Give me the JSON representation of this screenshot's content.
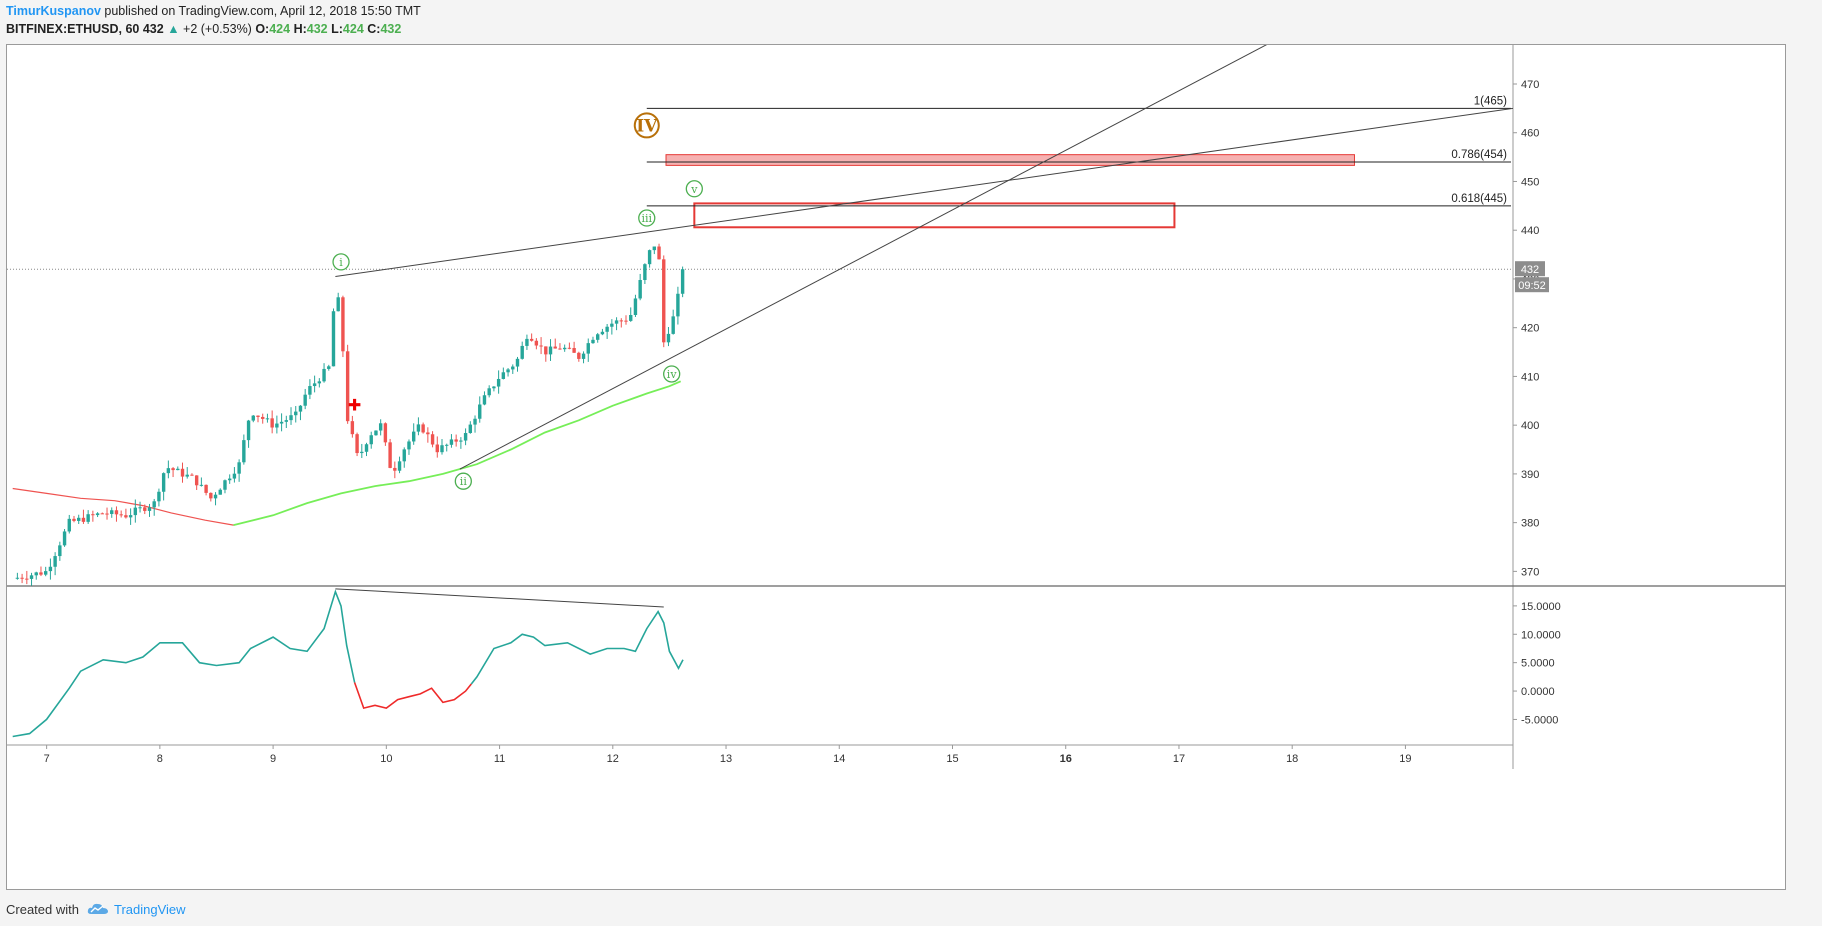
{
  "header": {
    "author": "TimurKuspanov",
    "published_text": "published on TradingView.com, April 12, 2018 15:50 TMT",
    "symbol": "BITFINEX:ETHUSD, 60",
    "last": "432",
    "change": "+2 (+0.53%)",
    "o_label": "O:",
    "o_value": "424",
    "h_label": "H:",
    "h_value": "432",
    "l_label": "L:",
    "l_value": "424",
    "c_label": "C:",
    "c_value": "432",
    "colors": {
      "author": "#2196f3",
      "up": "#26a69a",
      "ohlc": "#4caf50"
    }
  },
  "footer": {
    "created_with": "Created with",
    "brand": "TradingView",
    "logo_icon": "tradingview-cloud-icon"
  },
  "chart_data": {
    "type": "candlestick",
    "timeframe": "60",
    "x_axis": {
      "ticks": [
        {
          "label": "7",
          "day": 7,
          "bold": false
        },
        {
          "label": "8",
          "day": 8,
          "bold": false
        },
        {
          "label": "9",
          "day": 9,
          "bold": false
        },
        {
          "label": "10",
          "day": 10,
          "bold": false
        },
        {
          "label": "11",
          "day": 11,
          "bold": false
        },
        {
          "label": "12",
          "day": 12,
          "bold": false
        },
        {
          "label": "13",
          "day": 13,
          "bold": false
        },
        {
          "label": "14",
          "day": 14,
          "bold": false
        },
        {
          "label": "15",
          "day": 15,
          "bold": false
        },
        {
          "label": "16",
          "day": 16,
          "bold": true
        },
        {
          "label": "17",
          "day": 17,
          "bold": false
        },
        {
          "label": "18",
          "day": 18,
          "bold": false
        },
        {
          "label": "19",
          "day": 19,
          "bold": false
        }
      ],
      "range": [
        6.65,
        19.95
      ]
    },
    "price_axis": {
      "range": [
        367,
        478
      ],
      "ticks": [
        "370",
        "380",
        "390",
        "400",
        "410",
        "420",
        "430",
        "440",
        "450",
        "460",
        "470"
      ],
      "last_price_label": "432",
      "countdown_label": "09:52",
      "last_price": 432
    },
    "indicator_axis": {
      "range": [
        -9.5,
        18.5
      ],
      "ticks": [
        "15.0000",
        "10.0000",
        "5.0000",
        "0.0000",
        "-5.0000"
      ],
      "tick_values": [
        15,
        10,
        5,
        0,
        -5
      ]
    },
    "candle_anchors": [
      [
        6.7,
        368.5
      ],
      [
        7.0,
        370
      ],
      [
        7.2,
        380
      ],
      [
        7.5,
        382
      ],
      [
        7.7,
        381.5
      ],
      [
        7.95,
        384
      ],
      [
        8.05,
        391.5
      ],
      [
        8.3,
        389
      ],
      [
        8.45,
        385
      ],
      [
        8.7,
        392
      ],
      [
        8.8,
        403
      ],
      [
        9.0,
        400
      ],
      [
        9.2,
        402
      ],
      [
        9.3,
        407
      ],
      [
        9.5,
        412
      ],
      [
        9.55,
        429
      ],
      [
        9.6,
        422
      ],
      [
        9.65,
        402
      ],
      [
        9.75,
        393
      ],
      [
        9.85,
        398
      ],
      [
        9.95,
        400
      ],
      [
        10.05,
        390
      ],
      [
        10.15,
        395
      ],
      [
        10.3,
        400
      ],
      [
        10.45,
        395
      ],
      [
        10.55,
        396
      ],
      [
        10.7,
        398
      ],
      [
        10.85,
        405
      ],
      [
        11.0,
        410
      ],
      [
        11.15,
        413
      ],
      [
        11.25,
        419
      ],
      [
        11.4,
        415
      ],
      [
        11.55,
        416
      ],
      [
        11.7,
        414
      ],
      [
        11.85,
        419
      ],
      [
        12.0,
        421
      ],
      [
        12.15,
        422
      ],
      [
        12.25,
        430
      ],
      [
        12.3,
        434
      ],
      [
        12.35,
        437
      ],
      [
        12.4,
        437
      ],
      [
        12.45,
        417
      ],
      [
        12.55,
        423
      ],
      [
        12.62,
        432
      ]
    ],
    "indicator_anchors": [
      [
        6.7,
        -8
      ],
      [
        6.85,
        -7.5
      ],
      [
        7.0,
        -5
      ],
      [
        7.2,
        0.5
      ],
      [
        7.3,
        3.5
      ],
      [
        7.5,
        5.5
      ],
      [
        7.7,
        5
      ],
      [
        7.85,
        6
      ],
      [
        8.0,
        8.5
      ],
      [
        8.2,
        8.5
      ],
      [
        8.35,
        5
      ],
      [
        8.5,
        4.5
      ],
      [
        8.7,
        5
      ],
      [
        8.8,
        7.5
      ],
      [
        9.0,
        9.5
      ],
      [
        9.15,
        7.5
      ],
      [
        9.3,
        7
      ],
      [
        9.45,
        11
      ],
      [
        9.55,
        17.5
      ],
      [
        9.6,
        15
      ],
      [
        9.65,
        8
      ],
      [
        9.72,
        1.5
      ],
      [
        9.8,
        -3
      ],
      [
        9.9,
        -2.5
      ],
      [
        10.0,
        -3
      ],
      [
        10.1,
        -1.5
      ],
      [
        10.2,
        -1
      ],
      [
        10.3,
        -0.5
      ],
      [
        10.4,
        0.5
      ],
      [
        10.5,
        -2
      ],
      [
        10.6,
        -1.5
      ],
      [
        10.7,
        0
      ],
      [
        10.8,
        2.5
      ],
      [
        10.95,
        7.5
      ],
      [
        11.1,
        8.5
      ],
      [
        11.2,
        10
      ],
      [
        11.3,
        9.5
      ],
      [
        11.4,
        8
      ],
      [
        11.6,
        8.5
      ],
      [
        11.8,
        6.5
      ],
      [
        11.95,
        7.5
      ],
      [
        12.1,
        7.5
      ],
      [
        12.2,
        7
      ],
      [
        12.3,
        11
      ],
      [
        12.4,
        14
      ],
      [
        12.45,
        12
      ],
      [
        12.5,
        7
      ],
      [
        12.58,
        4
      ],
      [
        12.62,
        5.5
      ]
    ],
    "indicator_negative_segment": [
      9.72,
      10.75
    ],
    "sma_red": [
      [
        6.7,
        387
      ],
      [
        7.0,
        386
      ],
      [
        7.3,
        385
      ],
      [
        7.6,
        384.5
      ],
      [
        7.85,
        383.5
      ],
      [
        8.1,
        382
      ],
      [
        8.4,
        380.5
      ],
      [
        8.65,
        379.5
      ]
    ],
    "sma_green": [
      [
        8.65,
        379.5
      ],
      [
        9.0,
        381.5
      ],
      [
        9.3,
        384
      ],
      [
        9.6,
        386
      ],
      [
        9.9,
        387.5
      ],
      [
        10.2,
        388.5
      ],
      [
        10.5,
        390
      ],
      [
        10.8,
        392
      ],
      [
        11.1,
        395
      ],
      [
        11.4,
        398.5
      ],
      [
        11.7,
        401
      ],
      [
        12.0,
        404
      ],
      [
        12.3,
        406.5
      ],
      [
        12.5,
        408
      ],
      [
        12.6,
        409
      ]
    ],
    "fib_levels": [
      {
        "label": "1(465)",
        "price": 465,
        "x_start": 12.3
      },
      {
        "label": "0.786(454)",
        "price": 454,
        "x_start": 12.3
      },
      {
        "label": "0.618(445)",
        "price": 445,
        "x_start": 12.3
      }
    ],
    "zones": [
      {
        "name": "filled-zone",
        "x0": 12.47,
        "x1": 18.55,
        "y_top": 455.5,
        "y_bottom": 453.3,
        "filled": true
      },
      {
        "name": "outline-zone",
        "x0": 12.72,
        "x1": 16.96,
        "y_top": 445.5,
        "y_bottom": 440.6,
        "filled": false
      }
    ],
    "trendlines": [
      {
        "name": "upper-trendline",
        "p1": [
          9.55,
          430.5
        ],
        "p2": [
          19.95,
          465
        ]
      },
      {
        "name": "lower-trendline",
        "p1": [
          10.65,
          391
        ],
        "p2": [
          17.85,
          479
        ]
      },
      {
        "name": "indicator-divergence-line",
        "pane": "indicator",
        "p1": [
          9.55,
          18
        ],
        "p2": [
          12.45,
          14.8
        ]
      }
    ],
    "wave_labels": [
      {
        "label": "i",
        "x": 9.6,
        "price": 433.5,
        "color": "#4caf50",
        "big": false
      },
      {
        "label": "ii",
        "x": 10.68,
        "price": 388.5,
        "color": "#4caf50",
        "big": false
      },
      {
        "label": "iii",
        "x": 12.3,
        "price": 442.5,
        "color": "#4caf50",
        "big": false
      },
      {
        "label": "iv",
        "x": 12.52,
        "price": 410.5,
        "color": "#4caf50",
        "big": false
      },
      {
        "label": "v",
        "x": 12.72,
        "price": 448.5,
        "color": "#4caf50",
        "big": false
      },
      {
        "label": "IV",
        "x": 12.3,
        "price": 461.5,
        "color": "#b8700a",
        "big": true
      }
    ],
    "colors": {
      "up": "#26a69a",
      "down": "#ef5350",
      "sma_red": "#ef5350",
      "sma_green": "#76ee58",
      "indicator": "#26a69a",
      "indicator_negative": "#ef2a2a",
      "zone_fill": "#f4a3a3",
      "zone_border": "#e53935",
      "line": "#444444"
    }
  }
}
